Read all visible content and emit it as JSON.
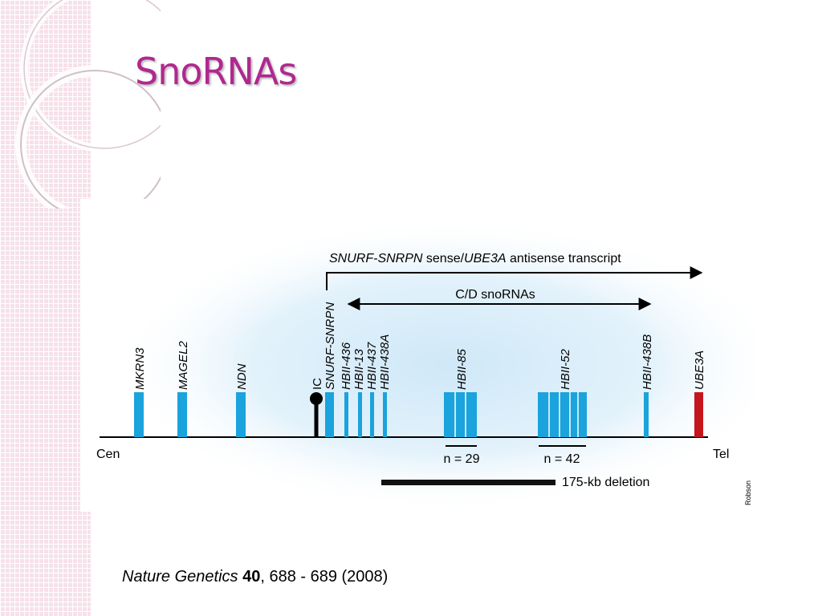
{
  "slide": {
    "title": "SnoRNAs"
  },
  "diagram": {
    "transcript_label_parts": [
      "SNURF-SNRPN",
      " sense/",
      "UBE3A",
      " antisense transcript"
    ],
    "snorna_range_label": "C/D snoRNAs",
    "chromosome_ends": {
      "left": "Cen",
      "right": "Tel"
    },
    "genes": [
      {
        "label": "MKRN3",
        "color": "#1aa3dc"
      },
      {
        "label": "MAGEL2",
        "color": "#1aa3dc"
      },
      {
        "label": "NDN",
        "color": "#1aa3dc"
      },
      {
        "label": "IC",
        "color": "#000000"
      },
      {
        "label": "SNURF-SNRPN",
        "color": "#1aa3dc"
      },
      {
        "label": "HBII-436",
        "color": "#1aa3dc"
      },
      {
        "label": "HBII-13",
        "color": "#1aa3dc"
      },
      {
        "label": "HBII-437",
        "color": "#1aa3dc"
      },
      {
        "label": "HBII-438A",
        "color": "#1aa3dc"
      },
      {
        "label": "HBII-85",
        "color": "#1aa3dc"
      },
      {
        "label": "HBII-52",
        "color": "#1aa3dc"
      },
      {
        "label": "HBII-438B",
        "color": "#1aa3dc"
      },
      {
        "label": "UBE3A",
        "color": "#c4161c"
      }
    ],
    "cluster_counts": [
      "n = 29",
      "n = 42"
    ],
    "deletion_label": "175-kb deletion",
    "credit": "Robson",
    "colors": {
      "gene": "#1aa3dc",
      "ube3a": "#c4161c",
      "glow": "#dbeefa"
    }
  },
  "citation": {
    "journal": "Nature Genetics",
    "volume": "40",
    "rest": ", 688 - 689 (2008)"
  }
}
